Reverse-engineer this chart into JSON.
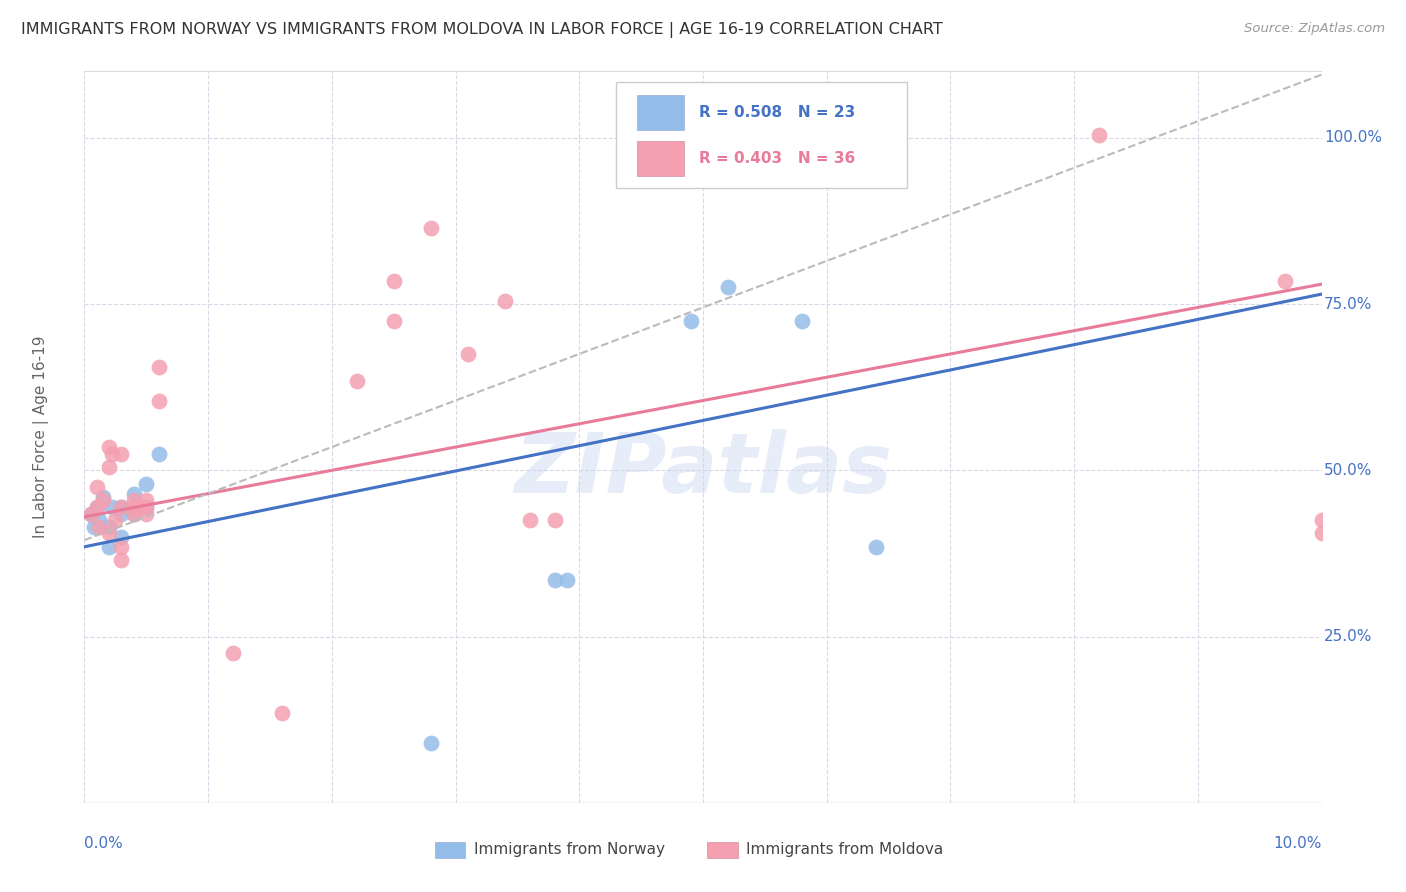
{
  "title": "IMMIGRANTS FROM NORWAY VS IMMIGRANTS FROM MOLDOVA IN LABOR FORCE | AGE 16-19 CORRELATION CHART",
  "source": "Source: ZipAtlas.com",
  "ylabel": "In Labor Force | Age 16-19",
  "norway_color": "#94bce8",
  "moldova_color": "#f4a0b0",
  "norway_R": 0.508,
  "norway_N": 23,
  "moldova_R": 0.403,
  "moldova_N": 36,
  "norway_points": [
    [
      0.0005,
      0.435
    ],
    [
      0.0008,
      0.415
    ],
    [
      0.001,
      0.445
    ],
    [
      0.0012,
      0.425
    ],
    [
      0.0015,
      0.46
    ],
    [
      0.002,
      0.415
    ],
    [
      0.002,
      0.385
    ],
    [
      0.0022,
      0.445
    ],
    [
      0.003,
      0.4
    ],
    [
      0.003,
      0.445
    ],
    [
      0.003,
      0.435
    ],
    [
      0.004,
      0.435
    ],
    [
      0.004,
      0.465
    ],
    [
      0.005,
      0.48
    ],
    [
      0.005,
      0.445
    ],
    [
      0.006,
      0.525
    ],
    [
      0.038,
      0.335
    ],
    [
      0.039,
      0.335
    ],
    [
      0.049,
      0.725
    ],
    [
      0.052,
      0.775
    ],
    [
      0.058,
      0.725
    ],
    [
      0.064,
      0.385
    ],
    [
      0.028,
      0.09
    ]
  ],
  "moldova_points": [
    [
      0.0005,
      0.435
    ],
    [
      0.001,
      0.445
    ],
    [
      0.001,
      0.475
    ],
    [
      0.0012,
      0.415
    ],
    [
      0.0015,
      0.455
    ],
    [
      0.002,
      0.405
    ],
    [
      0.002,
      0.505
    ],
    [
      0.002,
      0.535
    ],
    [
      0.0022,
      0.525
    ],
    [
      0.0025,
      0.425
    ],
    [
      0.003,
      0.445
    ],
    [
      0.003,
      0.385
    ],
    [
      0.003,
      0.365
    ],
    [
      0.003,
      0.525
    ],
    [
      0.004,
      0.455
    ],
    [
      0.004,
      0.445
    ],
    [
      0.004,
      0.435
    ],
    [
      0.005,
      0.455
    ],
    [
      0.005,
      0.445
    ],
    [
      0.005,
      0.435
    ],
    [
      0.006,
      0.655
    ],
    [
      0.006,
      0.605
    ],
    [
      0.012,
      0.225
    ],
    [
      0.016,
      0.135
    ],
    [
      0.022,
      0.635
    ],
    [
      0.025,
      0.785
    ],
    [
      0.025,
      0.725
    ],
    [
      0.028,
      0.865
    ],
    [
      0.031,
      0.675
    ],
    [
      0.034,
      0.755
    ],
    [
      0.036,
      0.425
    ],
    [
      0.038,
      0.425
    ],
    [
      0.082,
      1.005
    ],
    [
      0.097,
      0.785
    ],
    [
      0.1,
      0.405
    ],
    [
      0.1,
      0.425
    ]
  ],
  "norway_line_slope": 3.8,
  "norway_line_intercept": 0.385,
  "moldova_line_slope": 3.5,
  "moldova_line_intercept": 0.43,
  "dashed_line_slope": 7.0,
  "dashed_line_intercept": 0.395,
  "watermark": "ZIPatlas",
  "background_color": "#ffffff",
  "grid_color": "#d8d8e8",
  "norway_line_color": "#4472c4",
  "moldova_line_color": "#e87b9a",
  "dashed_line_color": "#bbbbbb",
  "right_axis_color": "#4472c4",
  "title_color": "#333333",
  "source_color": "#999999",
  "ylabel_color": "#666666",
  "legend_bg": "#ffffff",
  "legend_border": "#cccccc"
}
